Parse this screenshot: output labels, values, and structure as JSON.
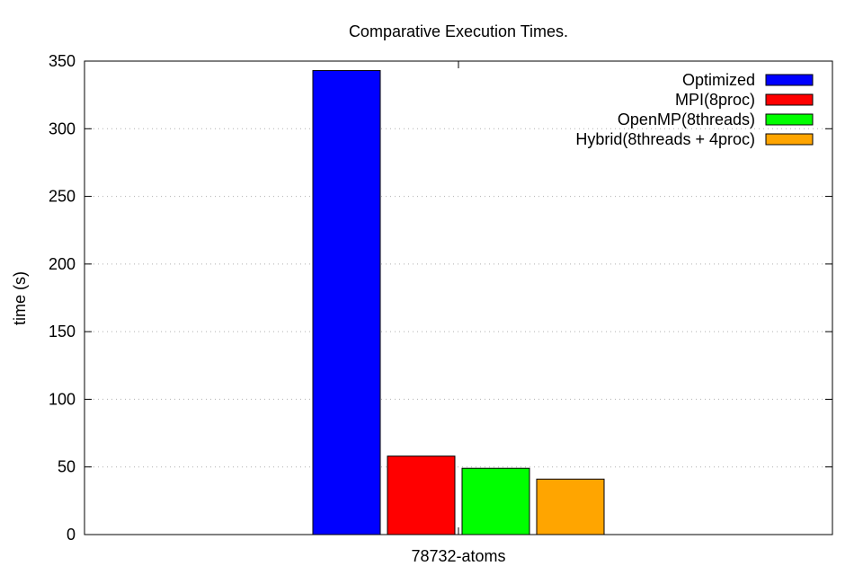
{
  "chart_data": {
    "type": "bar",
    "title": "Comparative Execution Times.",
    "xlabel": "",
    "ylabel": "time (s)",
    "categories": [
      "78732-atoms"
    ],
    "ylim": [
      0,
      350
    ],
    "yticks": [
      0,
      50,
      100,
      150,
      200,
      250,
      300,
      350
    ],
    "grid": true,
    "legend_position": "top-right",
    "series": [
      {
        "name": "Optimized",
        "values": [
          343
        ],
        "color": "#0000ff"
      },
      {
        "name": "MPI(8proc)",
        "values": [
          58
        ],
        "color": "#ff0000"
      },
      {
        "name": "OpenMP(8threads)",
        "values": [
          49
        ],
        "color": "#00ff00"
      },
      {
        "name": "Hybrid(8threads + 4proc)",
        "values": [
          41
        ],
        "color": "#ffa500"
      }
    ]
  }
}
